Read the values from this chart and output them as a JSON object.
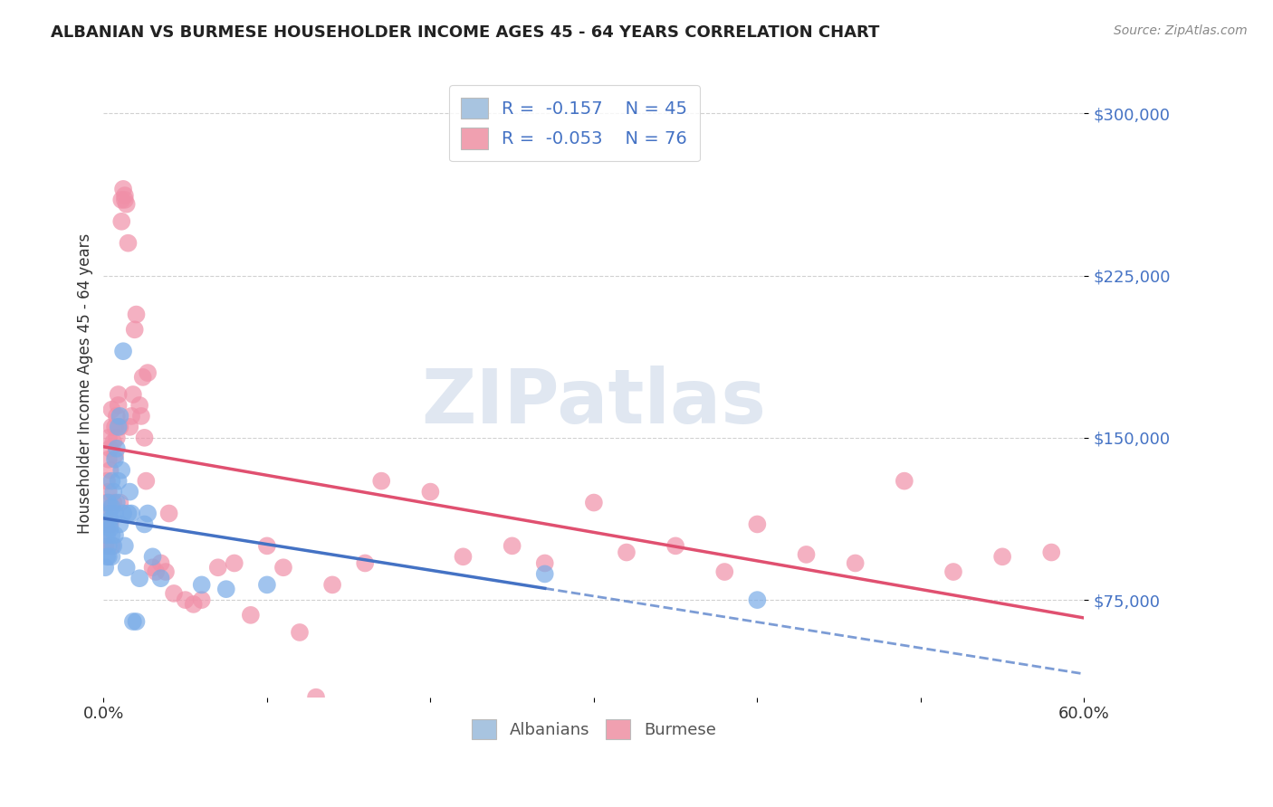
{
  "title": "ALBANIAN VS BURMESE HOUSEHOLDER INCOME AGES 45 - 64 YEARS CORRELATION CHART",
  "source": "Source: ZipAtlas.com",
  "ylabel": "Householder Income Ages 45 - 64 years",
  "yticks": [
    75000,
    150000,
    225000,
    300000
  ],
  "ytick_labels": [
    "$75,000",
    "$150,000",
    "$225,000",
    "$300,000"
  ],
  "xlim": [
    0.0,
    0.6
  ],
  "ylim": [
    30000,
    320000
  ],
  "legend_albanian_R": "-0.157",
  "legend_albanian_N": "45",
  "legend_burmese_R": "-0.053",
  "legend_burmese_N": "76",
  "albanian_color": "#a8c4e0",
  "burmese_color": "#f0a0b0",
  "albanian_line_color": "#4472c4",
  "burmese_line_color": "#e05070",
  "albanian_scatter_color": "#7aace8",
  "burmese_scatter_color": "#f090a8",
  "watermark": "ZIPatlas",
  "albanian_x": [
    0.001,
    0.001,
    0.002,
    0.002,
    0.003,
    0.003,
    0.003,
    0.004,
    0.004,
    0.004,
    0.005,
    0.005,
    0.005,
    0.005,
    0.006,
    0.006,
    0.007,
    0.007,
    0.007,
    0.008,
    0.008,
    0.009,
    0.009,
    0.01,
    0.01,
    0.011,
    0.012,
    0.012,
    0.013,
    0.014,
    0.015,
    0.016,
    0.017,
    0.018,
    0.02,
    0.022,
    0.025,
    0.027,
    0.03,
    0.035,
    0.06,
    0.075,
    0.1,
    0.27,
    0.4
  ],
  "albanian_y": [
    110000,
    90000,
    105000,
    95000,
    120000,
    100000,
    95000,
    115000,
    108000,
    112000,
    105000,
    130000,
    118000,
    95000,
    125000,
    100000,
    140000,
    115000,
    105000,
    145000,
    120000,
    155000,
    130000,
    110000,
    160000,
    135000,
    190000,
    115000,
    100000,
    90000,
    115000,
    125000,
    115000,
    65000,
    65000,
    85000,
    110000,
    115000,
    95000,
    85000,
    82000,
    80000,
    82000,
    87000,
    75000
  ],
  "burmese_x": [
    0.001,
    0.001,
    0.002,
    0.002,
    0.002,
    0.003,
    0.003,
    0.003,
    0.004,
    0.004,
    0.004,
    0.005,
    0.005,
    0.005,
    0.006,
    0.006,
    0.007,
    0.007,
    0.008,
    0.008,
    0.009,
    0.009,
    0.01,
    0.01,
    0.011,
    0.011,
    0.012,
    0.013,
    0.013,
    0.014,
    0.015,
    0.016,
    0.017,
    0.018,
    0.019,
    0.02,
    0.022,
    0.023,
    0.024,
    0.025,
    0.026,
    0.027,
    0.03,
    0.032,
    0.035,
    0.038,
    0.04,
    0.043,
    0.05,
    0.055,
    0.06,
    0.07,
    0.08,
    0.09,
    0.1,
    0.11,
    0.12,
    0.13,
    0.14,
    0.16,
    0.17,
    0.2,
    0.22,
    0.25,
    0.27,
    0.3,
    0.32,
    0.35,
    0.38,
    0.4,
    0.43,
    0.46,
    0.49,
    0.52,
    0.55,
    0.58
  ],
  "burmese_y": [
    100000,
    115000,
    130000,
    108000,
    120000,
    140000,
    125000,
    150000,
    145000,
    110000,
    135000,
    155000,
    100000,
    163000,
    148000,
    120000,
    155000,
    142000,
    160000,
    150000,
    170000,
    165000,
    155000,
    120000,
    250000,
    260000,
    265000,
    260000,
    262000,
    258000,
    240000,
    155000,
    160000,
    170000,
    200000,
    207000,
    165000,
    160000,
    178000,
    150000,
    130000,
    180000,
    90000,
    88000,
    92000,
    88000,
    115000,
    78000,
    75000,
    73000,
    75000,
    90000,
    92000,
    68000,
    100000,
    90000,
    60000,
    30000,
    82000,
    92000,
    130000,
    125000,
    95000,
    100000,
    92000,
    120000,
    97000,
    100000,
    88000,
    110000,
    96000,
    92000,
    130000,
    88000,
    95000,
    97000
  ]
}
